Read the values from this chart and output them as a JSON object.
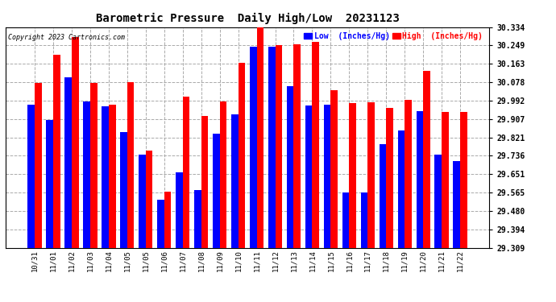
{
  "title": "Barometric Pressure  Daily High/Low  20231123",
  "copyright": "Copyright 2023 Cartronics.com",
  "legend_low": "Low  (Inches/Hg)",
  "legend_high": "High  (Inches/Hg)",
  "x_labels": [
    "10/31",
    "11/01",
    "11/02",
    "11/03",
    "11/04",
    "11/05",
    "11/05",
    "11/06",
    "11/07",
    "11/08",
    "11/09",
    "11/10",
    "11/11",
    "11/12",
    "11/13",
    "11/14",
    "11/15",
    "11/16",
    "11/17",
    "11/18",
    "11/19",
    "11/20",
    "11/21",
    "11/22"
  ],
  "low_values": [
    29.975,
    29.901,
    30.1,
    29.99,
    29.965,
    29.845,
    29.74,
    29.53,
    29.66,
    29.575,
    29.84,
    29.93,
    30.245,
    30.245,
    30.06,
    29.97,
    29.975,
    29.565,
    29.565,
    29.79,
    29.855,
    29.945,
    29.74,
    29.71
  ],
  "high_values": [
    30.075,
    30.205,
    30.29,
    30.075,
    29.975,
    30.08,
    29.76,
    29.57,
    30.01,
    29.92,
    29.99,
    30.17,
    30.36,
    30.25,
    30.255,
    30.265,
    30.04,
    29.98,
    29.985,
    29.96,
    29.995,
    30.13,
    29.94,
    29.94
  ],
  "ymin": 29.309,
  "ymax": 30.334,
  "yticks": [
    29.309,
    29.394,
    29.48,
    29.565,
    29.651,
    29.736,
    29.821,
    29.907,
    29.992,
    30.078,
    30.163,
    30.249,
    30.334
  ],
  "low_color": "#0000ff",
  "high_color": "#ff0000",
  "bg_color": "#ffffff",
  "grid_color": "#aaaaaa",
  "bar_width": 0.38
}
